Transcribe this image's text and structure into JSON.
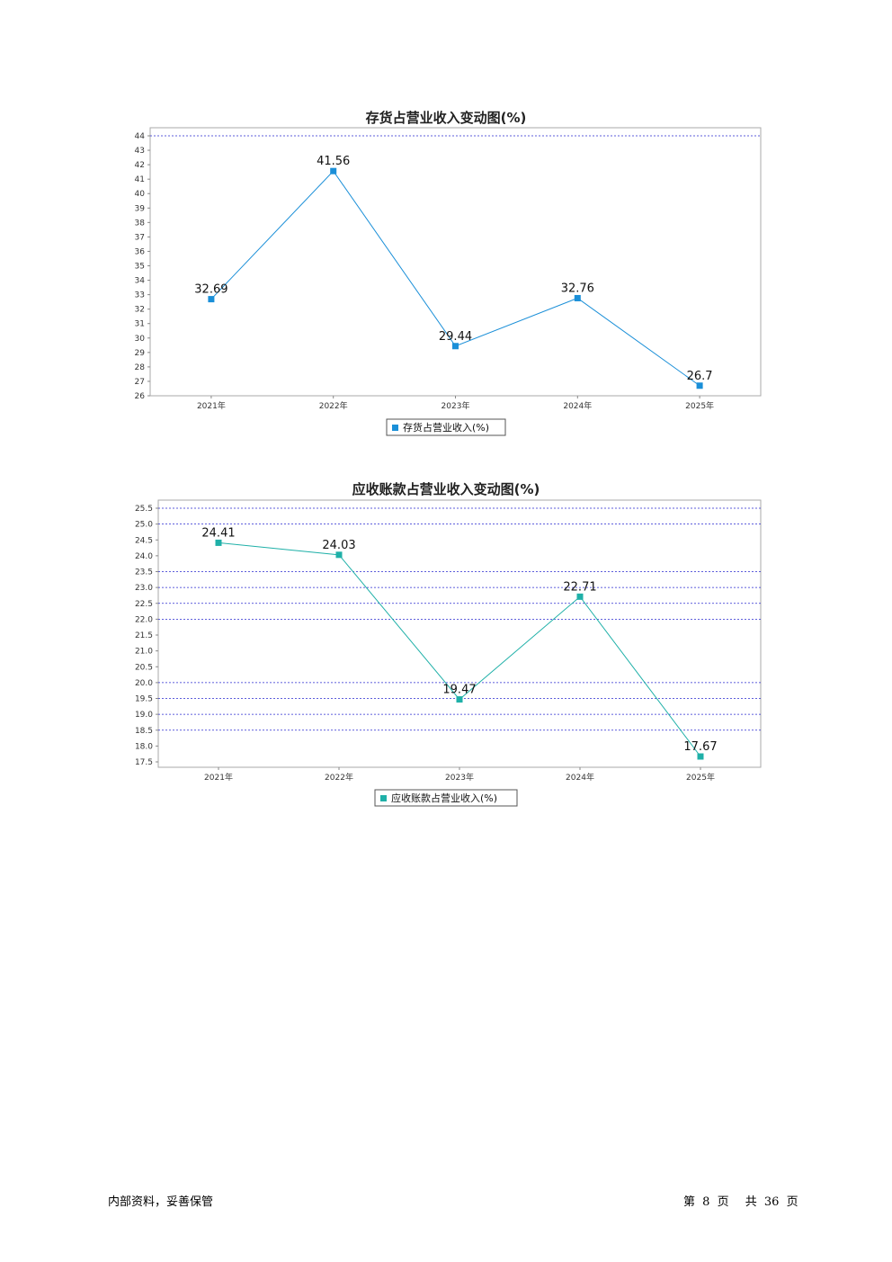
{
  "charts": [
    {
      "title": "存货占营业收入变动图(%)",
      "legend": "存货占营业收入(%)",
      "color": "#1a8fd8"
    },
    {
      "title": "应收账款占营业收入变动图(%)",
      "legend": "应收账款占营业收入(%)",
      "color": "#1fb0a8"
    }
  ],
  "chart_data": [
    {
      "type": "line",
      "title": "存货占营业收入变动图(%)",
      "categories": [
        "2021年",
        "2022年",
        "2023年",
        "2024年",
        "2025年"
      ],
      "series": [
        {
          "name": "存货占营业收入(%)",
          "values": [
            32.69,
            41.56,
            29.44,
            32.76,
            26.7
          ]
        }
      ],
      "data_labels": [
        "32.69",
        "41.56",
        "29.44",
        "32.76",
        "26.7"
      ],
      "ylim": [
        26,
        44
      ],
      "yticks": [
        "26",
        "27",
        "28",
        "29",
        "30",
        "31",
        "32",
        "33",
        "34",
        "35",
        "36",
        "37",
        "38",
        "39",
        "40",
        "41",
        "42",
        "43",
        "44"
      ],
      "grid_lines": [
        44
      ],
      "legend_position": "bottom"
    },
    {
      "type": "line",
      "title": "应收账款占营业收入变动图(%)",
      "categories": [
        "2021年",
        "2022年",
        "2023年",
        "2024年",
        "2025年"
      ],
      "series": [
        {
          "name": "应收账款占营业收入(%)",
          "values": [
            24.41,
            24.03,
            19.47,
            22.71,
            17.67
          ]
        }
      ],
      "data_labels": [
        "24.41",
        "24.03",
        "19.47",
        "22.71",
        "17.67"
      ],
      "ylim": [
        17.5,
        25.5
      ],
      "yticks": [
        "17.5",
        "18.0",
        "18.5",
        "19.0",
        "19.5",
        "20.0",
        "20.5",
        "21.0",
        "21.5",
        "22.0",
        "22.5",
        "23.0",
        "23.5",
        "24.0",
        "24.5",
        "25.0",
        "25.5"
      ],
      "grid_lines": [
        18.5,
        19.0,
        19.5,
        20.0,
        22.0,
        22.5,
        23.0,
        23.5,
        25.0,
        25.5
      ],
      "legend_position": "bottom"
    }
  ],
  "footer": {
    "left": "内部资料，妥善保管",
    "page_label_prefix": "第",
    "page_number": "8",
    "page_label_mid": "页",
    "total_prefix": "共",
    "total_pages": "36",
    "total_suffix": "页"
  }
}
